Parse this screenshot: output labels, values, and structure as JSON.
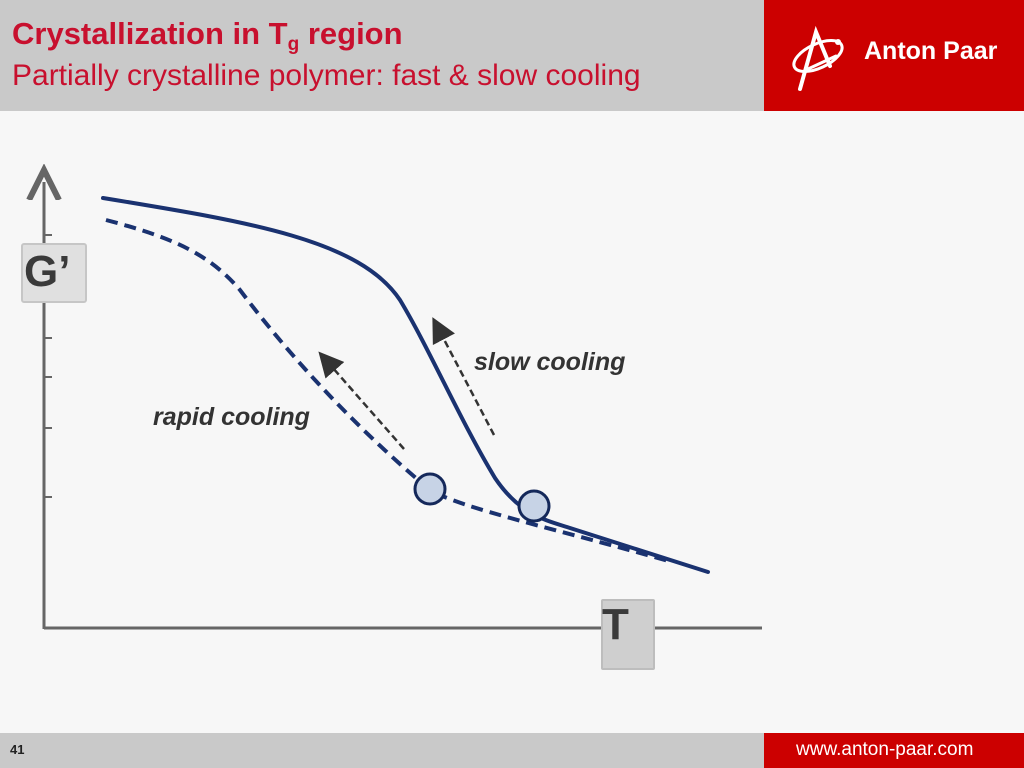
{
  "header": {
    "title_main": "Crystallization in T",
    "title_sub": "g",
    "title_end": " region",
    "subtitle": "Partially crystalline polymer: fast & slow cooling"
  },
  "logo": {
    "text": "Anton Paar",
    "icon": "anton-paar-logo-icon"
  },
  "footer": {
    "page_number": "41",
    "url": "www.anton-paar.com"
  },
  "diagram": {
    "y_axis_label": "G’",
    "x_axis_label": "T",
    "slow_cooling_label": "slow cooling",
    "rapid_cooling_label": "rapid cooling"
  },
  "colors": {
    "brand_red": "#cc0000",
    "title_red": "#c8102e",
    "curve_blue": "#1a3270",
    "header_grey": "#c9c9c9"
  }
}
